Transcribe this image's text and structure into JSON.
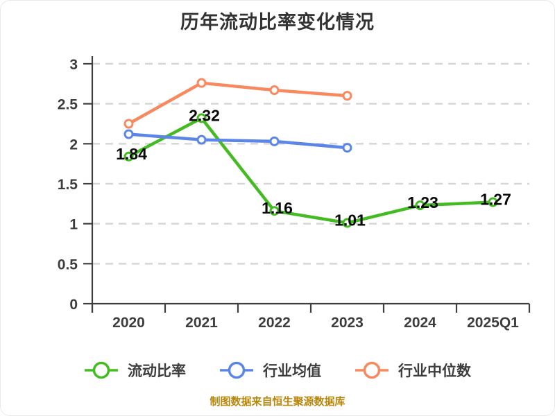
{
  "title": "历年流动比率变化情况",
  "footer": "制图数据来自恒生聚源数据库",
  "colors": {
    "title_text": "#333333",
    "axis_line": "#3f3f3f",
    "axis_text": "#3d3d3d",
    "gridline": "#d6d6d6",
    "data_label": "#0a0a0a",
    "footer_text": "#b8860b",
    "marker_fill": "#ffffff"
  },
  "chart_data": {
    "type": "line",
    "title": "历年流动比率变化情况",
    "categories": [
      "2020",
      "2021",
      "2022",
      "2023",
      "2024",
      "2025Q1"
    ],
    "series": [
      {
        "id": "current-ratio",
        "name": "流动比率",
        "color": "#44bb22",
        "values": [
          1.84,
          2.32,
          1.16,
          1.01,
          1.23,
          1.27
        ],
        "show_labels": true
      },
      {
        "id": "industry-average",
        "name": "行业均值",
        "color": "#5b86e8",
        "values": [
          2.12,
          2.05,
          2.03,
          1.95
        ],
        "show_labels": false
      },
      {
        "id": "industry-median",
        "name": "行业中位数",
        "color": "#f8885e",
        "values": [
          2.25,
          2.76,
          2.67,
          2.6
        ],
        "show_labels": false
      }
    ],
    "xlabel": "",
    "ylabel": "",
    "ylim": [
      0,
      3
    ],
    "ytick_step": 0.5,
    "yticks": [
      "0",
      "0.5",
      "1",
      "1.5",
      "2",
      "2.5",
      "3"
    ],
    "grid": "horizontal-dashed",
    "legend_position": "bottom",
    "source_note": "制图数据来自恒生聚源数据库"
  }
}
